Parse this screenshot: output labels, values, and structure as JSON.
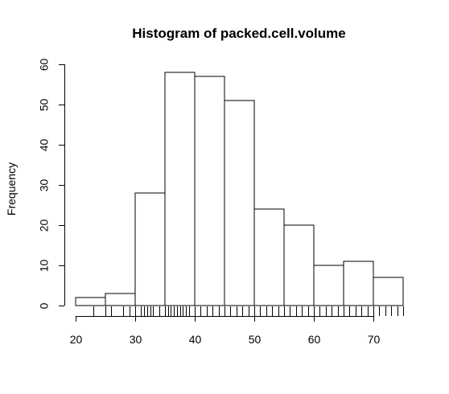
{
  "chart_data": {
    "type": "bar",
    "title": "Histogram of packed.cell.volume",
    "xlabel": "",
    "ylabel": "Frequency",
    "bins": [
      {
        "x0": 20,
        "x1": 25,
        "count": 2
      },
      {
        "x0": 25,
        "x1": 30,
        "count": 3
      },
      {
        "x0": 30,
        "x1": 35,
        "count": 28
      },
      {
        "x0": 35,
        "x1": 40,
        "count": 58
      },
      {
        "x0": 40,
        "x1": 45,
        "count": 57
      },
      {
        "x0": 45,
        "x1": 50,
        "count": 51
      },
      {
        "x0": 50,
        "x1": 55,
        "count": 24
      },
      {
        "x0": 55,
        "x1": 60,
        "count": 20
      },
      {
        "x0": 60,
        "x1": 65,
        "count": 10
      },
      {
        "x0": 65,
        "x1": 70,
        "count": 11
      },
      {
        "x0": 70,
        "x1": 75,
        "count": 7
      }
    ],
    "xlim": [
      20,
      75
    ],
    "ylim": [
      0,
      60
    ],
    "x_ticks": [
      20,
      30,
      40,
      50,
      60,
      70
    ],
    "y_ticks": [
      0,
      10,
      20,
      30,
      40,
      50,
      60
    ],
    "rug": [
      23,
      25,
      26,
      28,
      29,
      30,
      31,
      31.5,
      32,
      32.5,
      33,
      34,
      35,
      35.5,
      36,
      36.5,
      37,
      37.5,
      38,
      38.5,
      39,
      40,
      41,
      42,
      43,
      44,
      45,
      46,
      47,
      48,
      49,
      50,
      51,
      52,
      53,
      54,
      55,
      56,
      57,
      58,
      59,
      60,
      61,
      62,
      63,
      64,
      65,
      66,
      67,
      68,
      69,
      70,
      71,
      72,
      73,
      74,
      75
    ],
    "grid": false,
    "bar_fill": "#ffffff",
    "stroke_color": "#000000"
  }
}
